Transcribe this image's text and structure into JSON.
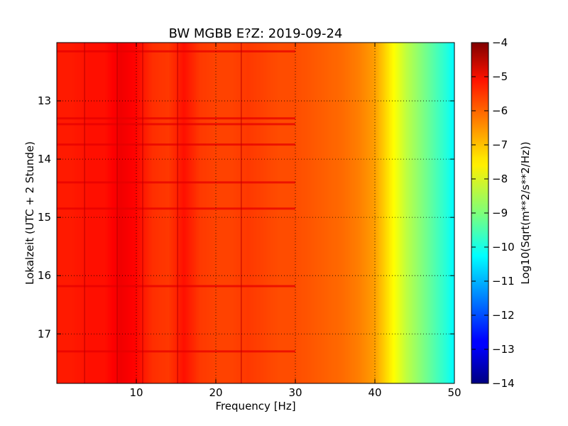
{
  "chart_data": {
    "type": "heatmap",
    "title": "BW MGBB E?Z: 2019-09-24",
    "xlabel": "Frequency [Hz]",
    "ylabel": "Lokalzeit (UTC + 2 Stunde)",
    "xlim": [
      0,
      50
    ],
    "ylim": [
      17.85,
      12.0
    ],
    "xticks": [
      10,
      20,
      30,
      40,
      50
    ],
    "yticks": [
      13,
      14,
      15,
      16,
      17
    ],
    "grid": true,
    "colormap": "jet",
    "colorbar": {
      "label": "Log10(Sqrt(m**2/s**2/Hz))",
      "range": [
        -14,
        -4
      ],
      "ticks": [
        -4,
        -5,
        -6,
        -7,
        -8,
        -9,
        -10,
        -11,
        -12,
        -13,
        -14
      ]
    },
    "spectrum_profile": {
      "frequency_hz": [
        0,
        2,
        4,
        6,
        8,
        10,
        12,
        14,
        16,
        18,
        20,
        22,
        24,
        26,
        28,
        30,
        32,
        34,
        36,
        38,
        40,
        41,
        42,
        43,
        44,
        45,
        46,
        47,
        48,
        49,
        50
      ],
      "log10_amplitude": [
        -5.5,
        -5.5,
        -5.4,
        -5.4,
        -5.1,
        -5.3,
        -5.7,
        -5.8,
        -5.4,
        -5.8,
        -5.9,
        -5.9,
        -5.8,
        -5.9,
        -6.0,
        -6.0,
        -6.1,
        -6.2,
        -6.3,
        -6.5,
        -6.8,
        -7.2,
        -7.6,
        -8.0,
        -8.4,
        -8.7,
        -9.0,
        -9.3,
        -9.6,
        -9.9,
        -10.3
      ]
    },
    "vertical_lines_hz": [
      3.5,
      7.6,
      10.8,
      15.2,
      23.2
    ],
    "horizontal_events_h": [
      12.15,
      13.3,
      13.4,
      13.75,
      14.4,
      14.85,
      16.18,
      17.3
    ]
  }
}
